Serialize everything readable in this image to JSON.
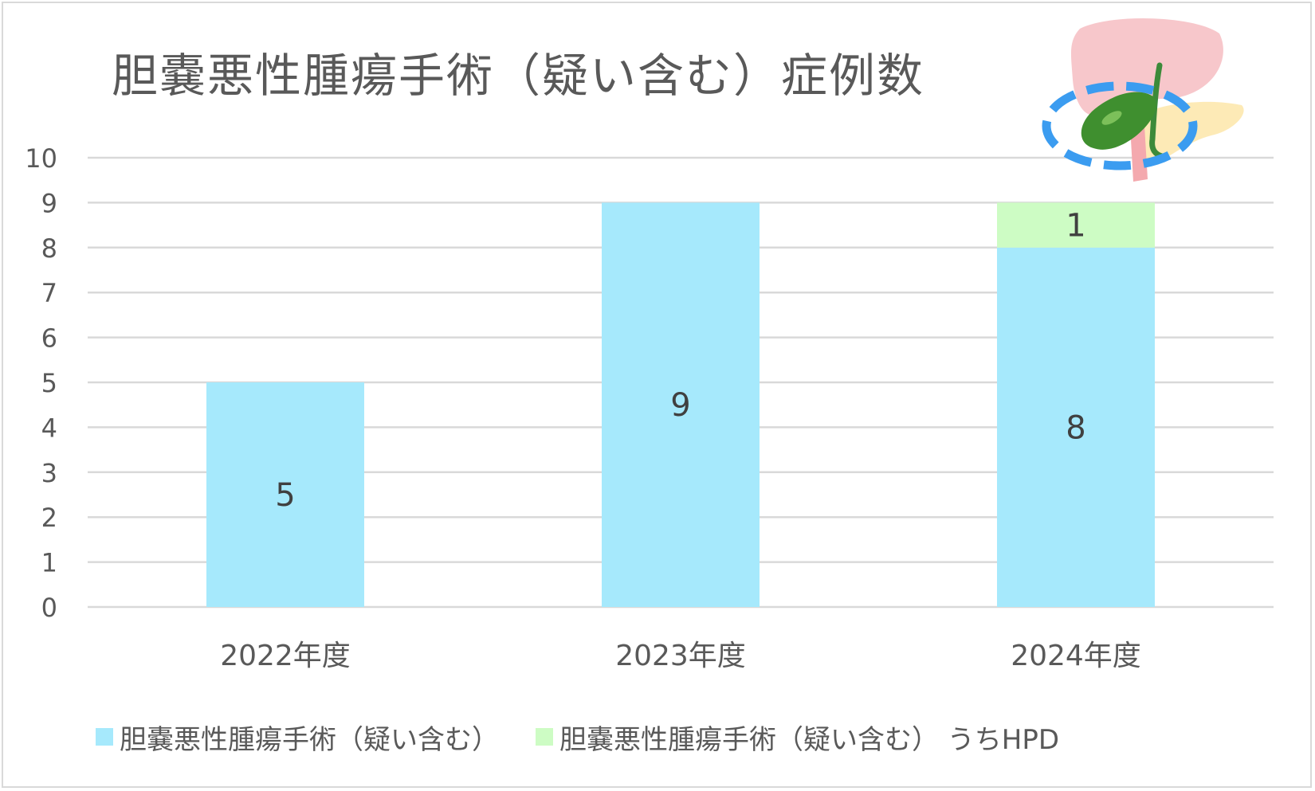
{
  "colors": {
    "series_base": "#a6e9fc",
    "series_hpd": "#cdfcc4",
    "gridline": "#d9d9d9",
    "text": "#595959",
    "label_text": "#404040"
  },
  "illustration": {
    "icon": "gallbladder-liver-pancreas-illustration"
  },
  "chart_data": {
    "type": "bar",
    "stacked": true,
    "title": "胆嚢悪性腫瘍手術（疑い含む）症例数",
    "xlabel": "",
    "ylabel": "",
    "categories": [
      "2022年度",
      "2023年度",
      "2024年度"
    ],
    "ylim": [
      0,
      10
    ],
    "yticks": [
      "0",
      "1",
      "2",
      "3",
      "4",
      "5",
      "6",
      "7",
      "8",
      "9",
      "10"
    ],
    "grid": true,
    "legend_position": "bottom",
    "series": [
      {
        "name": "胆嚢悪性腫瘍手術（疑い含む）",
        "values": [
          5,
          9,
          8
        ],
        "labels": [
          "5",
          "9",
          "8"
        ]
      },
      {
        "name": "胆嚢悪性腫瘍手術（疑い含む） うちHPD",
        "values": [
          0,
          0,
          1
        ],
        "labels": [
          "",
          "",
          "1"
        ]
      }
    ]
  }
}
